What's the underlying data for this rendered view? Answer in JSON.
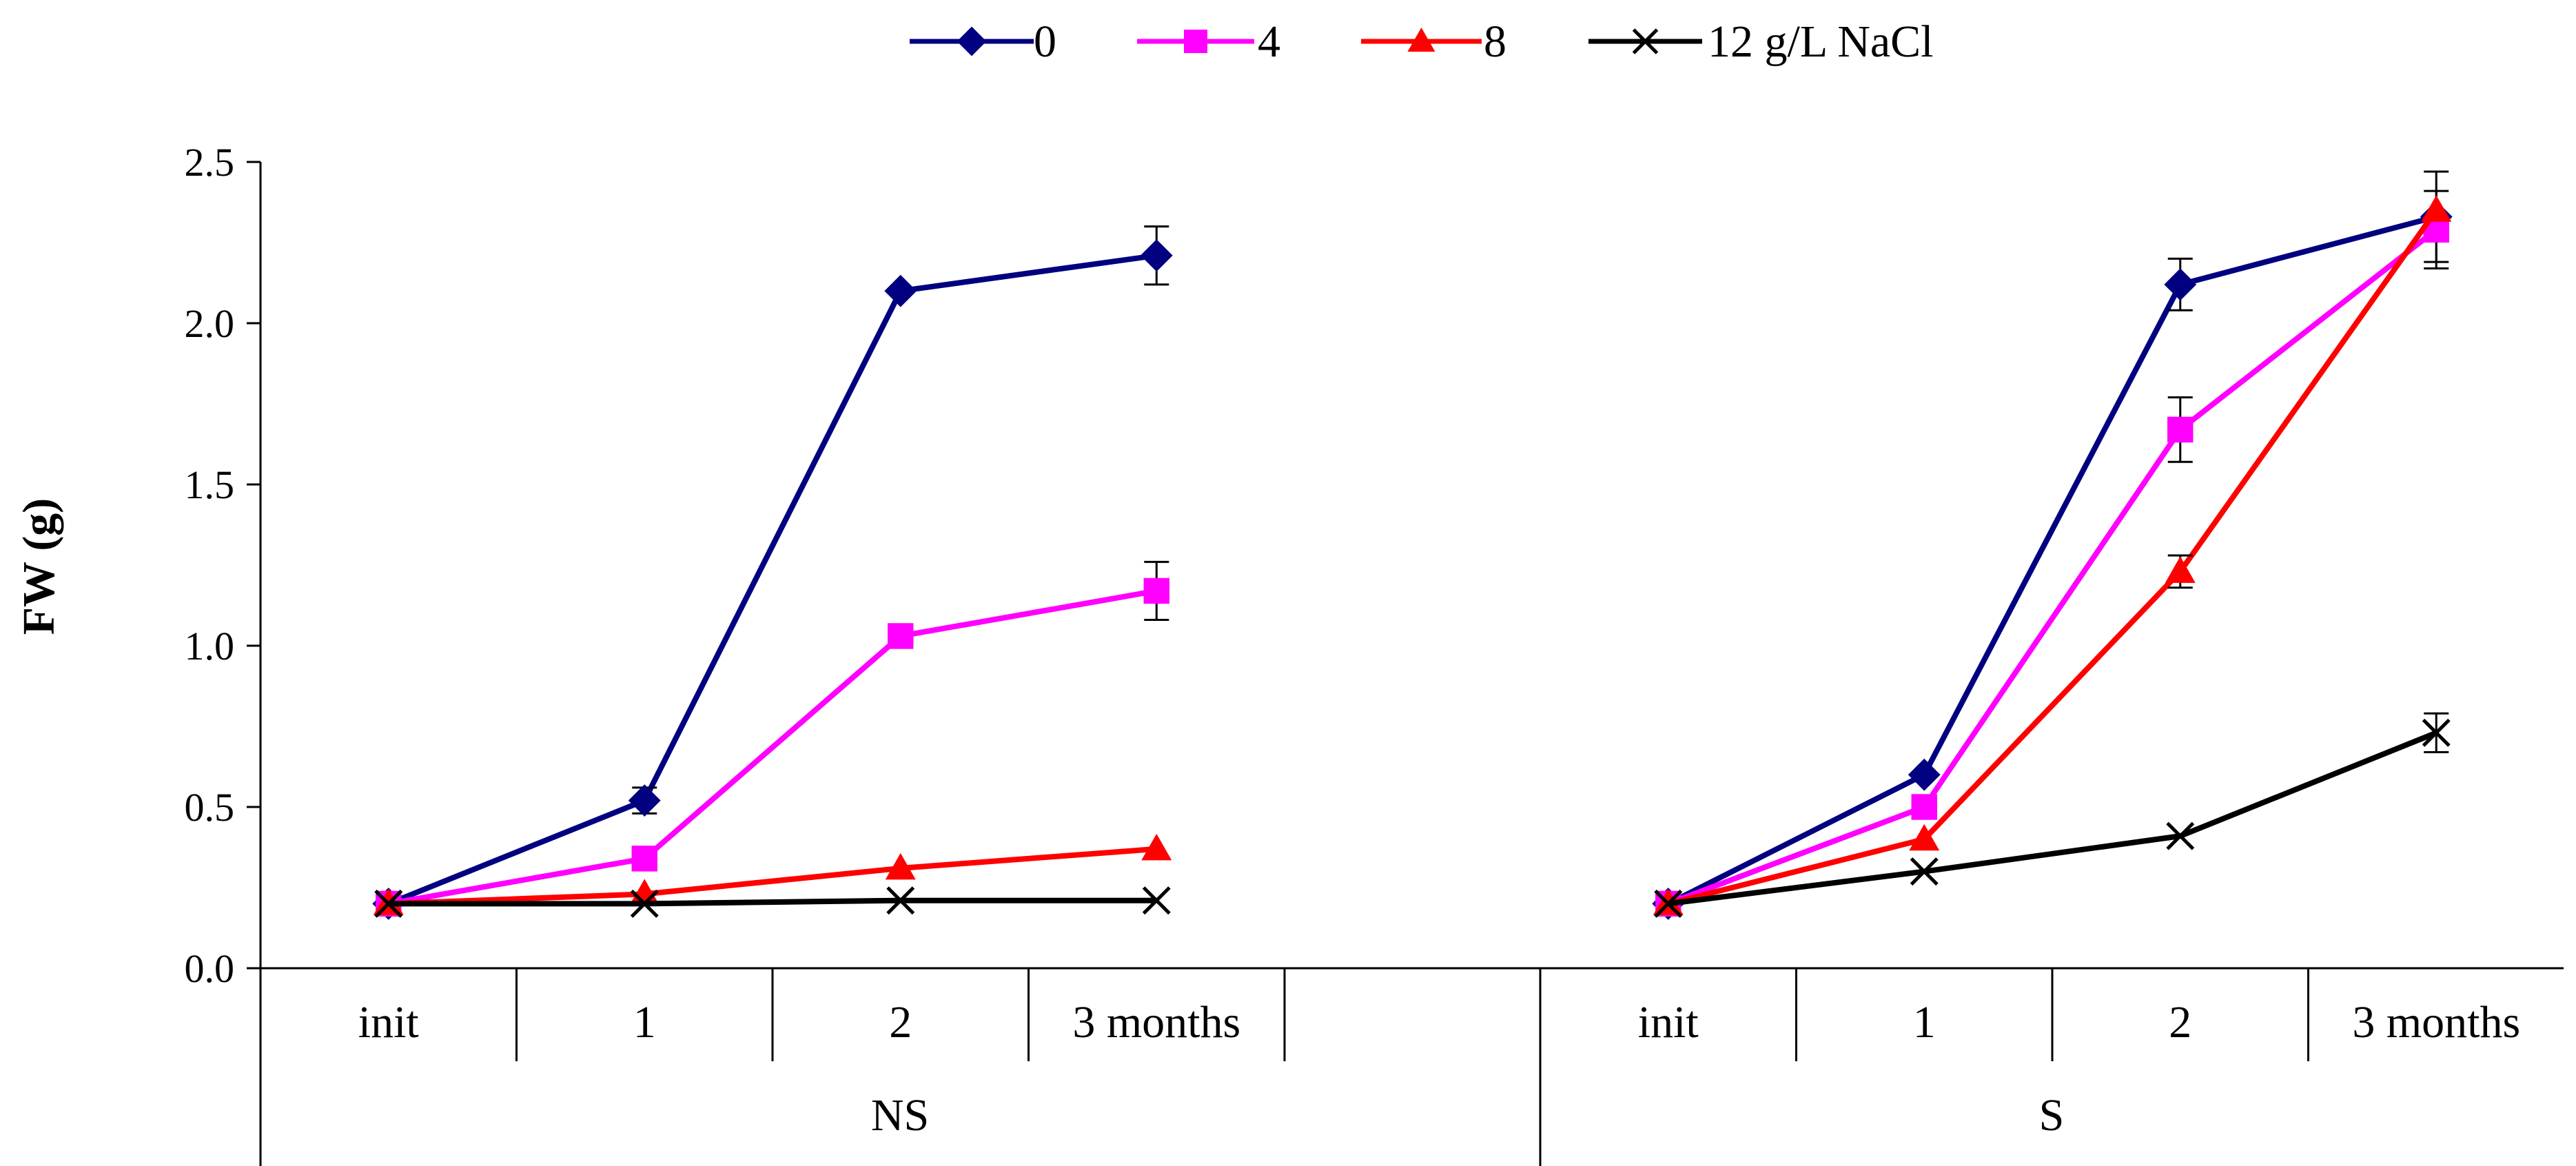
{
  "chart_data": {
    "type": "line",
    "title": "",
    "xlabel": "",
    "ylabel": "FW (g)",
    "ylim": [
      0,
      2.5
    ],
    "yticks": [
      "0.0",
      "0.5",
      "1.0",
      "1.5",
      "2.0",
      "2.5"
    ],
    "grid": false,
    "legend_position": "top-center",
    "groups": [
      {
        "name": "NS",
        "categories": [
          "init",
          "1",
          "2",
          "3 months"
        ]
      },
      {
        "name": "S",
        "categories": [
          "init",
          "1",
          "2",
          "3 months"
        ]
      }
    ],
    "series": [
      {
        "name": "0",
        "color": "#000080",
        "marker": "diamond",
        "values": {
          "NS": [
            0.2,
            0.52,
            2.1,
            2.21
          ],
          "S": [
            0.2,
            0.6,
            2.12,
            2.33
          ]
        },
        "errors": {
          "NS": [
            0,
            0.04,
            0,
            0.09
          ],
          "S": [
            0,
            0,
            0.08,
            0.14
          ]
        }
      },
      {
        "name": "4",
        "color": "#FF00FF",
        "marker": "square",
        "values": {
          "NS": [
            0.2,
            0.34,
            1.03,
            1.17
          ],
          "S": [
            0.2,
            0.5,
            1.67,
            2.29
          ]
        },
        "errors": {
          "NS": [
            0,
            0,
            0,
            0.09
          ],
          "S": [
            0,
            0,
            0.1,
            0.12
          ]
        }
      },
      {
        "name": "8",
        "color": "#FF0000",
        "marker": "triangle",
        "values": {
          "NS": [
            0.2,
            0.23,
            0.31,
            0.37
          ],
          "S": [
            0.2,
            0.4,
            1.23,
            2.35
          ]
        },
        "errors": {
          "NS": [
            0,
            0,
            0,
            0
          ],
          "S": [
            0,
            0,
            0.05,
            0
          ]
        }
      },
      {
        "name": "12 g/L NaCl",
        "color": "#000000",
        "marker": "x",
        "values": {
          "NS": [
            0.2,
            0.2,
            0.21,
            0.21
          ],
          "S": [
            0.2,
            0.3,
            0.41,
            0.73
          ]
        },
        "errors": {
          "NS": [
            0,
            0,
            0,
            0
          ],
          "S": [
            0,
            0,
            0,
            0.06
          ]
        }
      }
    ]
  }
}
